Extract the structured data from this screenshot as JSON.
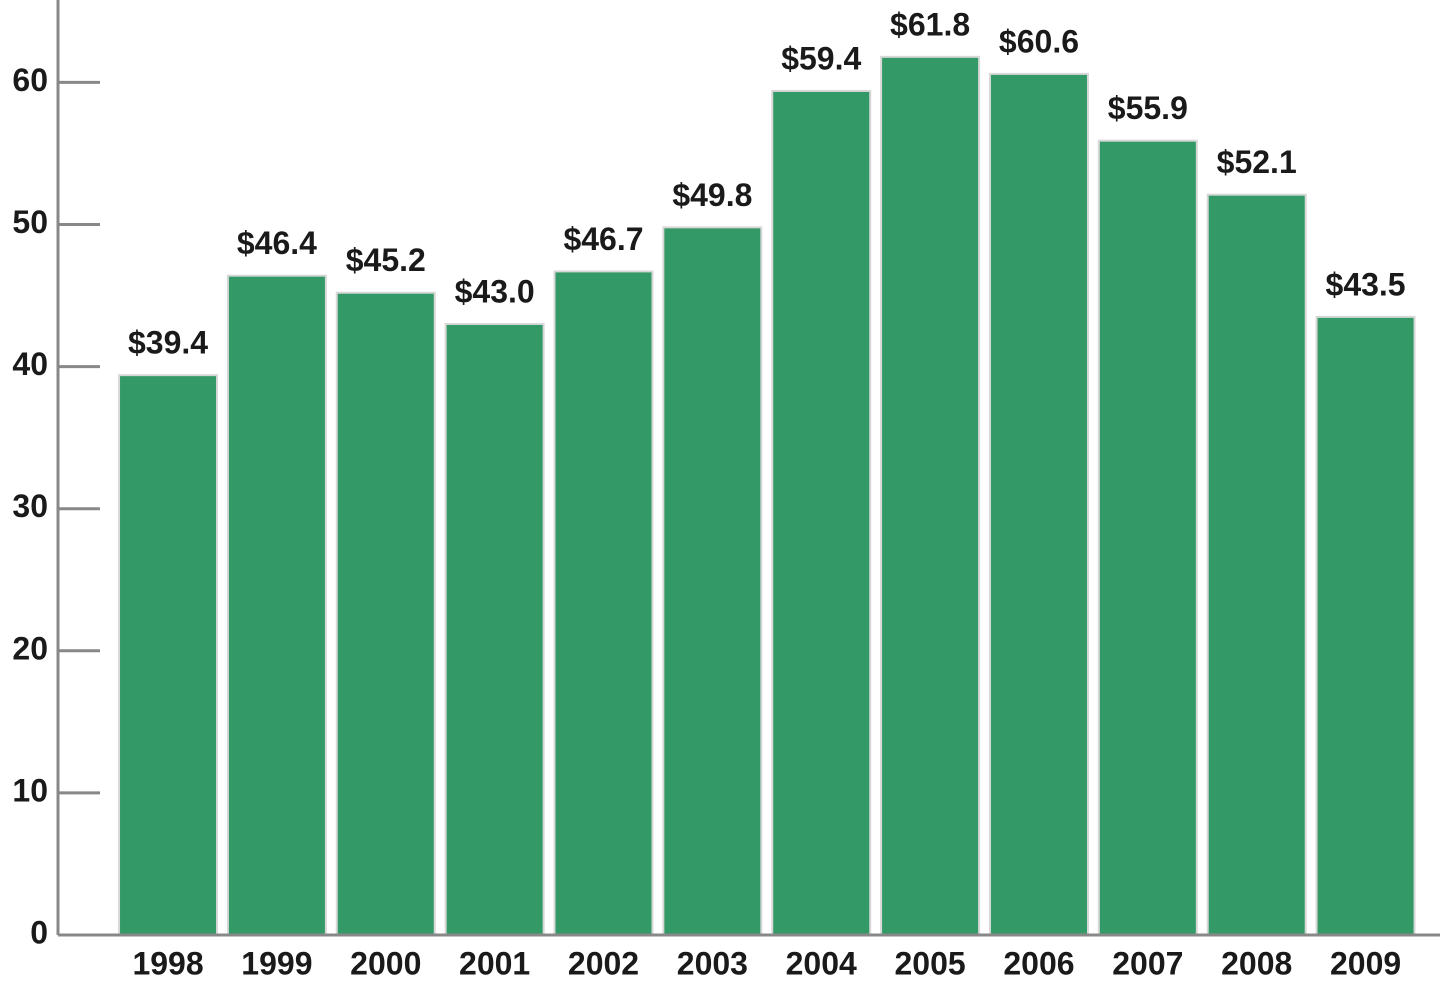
{
  "chart_data": {
    "type": "bar",
    "categories": [
      "1998",
      "1999",
      "2000",
      "2001",
      "2002",
      "2003",
      "2004",
      "2005",
      "2006",
      "2007",
      "2008",
      "2009"
    ],
    "values": [
      39.4,
      46.4,
      45.2,
      43.0,
      46.7,
      49.8,
      59.4,
      61.8,
      60.6,
      55.9,
      52.1,
      43.5
    ],
    "value_labels": [
      "$39.4",
      "$46.4",
      "$45.2",
      "$43.0",
      "$46.7",
      "$49.8",
      "$59.4",
      "$61.8",
      "$60.6",
      "$55.9",
      "$52.1",
      "$43.5"
    ],
    "color": "#339966",
    "ylim": [
      0,
      65.8
    ],
    "yticks": [
      0,
      10,
      20,
      30,
      40,
      50,
      60
    ]
  }
}
